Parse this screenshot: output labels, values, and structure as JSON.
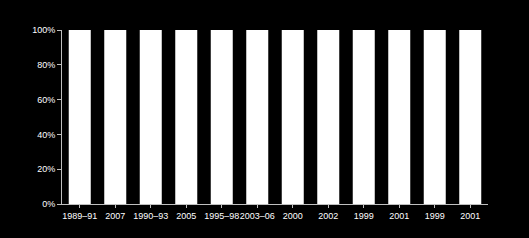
{
  "chart_data": {
    "type": "bar",
    "categories": [
      "1989–91",
      "2007",
      "1990–93",
      "2005",
      "1995–98",
      "2003–06",
      "2000",
      "2002",
      "1999",
      "2001",
      "1999",
      "2001"
    ],
    "values": [
      100,
      100,
      100,
      100,
      100,
      100,
      100,
      100,
      100,
      100,
      100,
      100
    ],
    "color": "#ffffff",
    "ylim": [
      0,
      100
    ],
    "yticks": [
      {
        "value": 0,
        "label": "0%"
      },
      {
        "value": 20,
        "label": "20%"
      },
      {
        "value": 40,
        "label": "40%"
      },
      {
        "value": 60,
        "label": "60%"
      },
      {
        "value": 80,
        "label": "80%"
      },
      {
        "value": 100,
        "label": "100%"
      }
    ],
    "grid": false
  }
}
